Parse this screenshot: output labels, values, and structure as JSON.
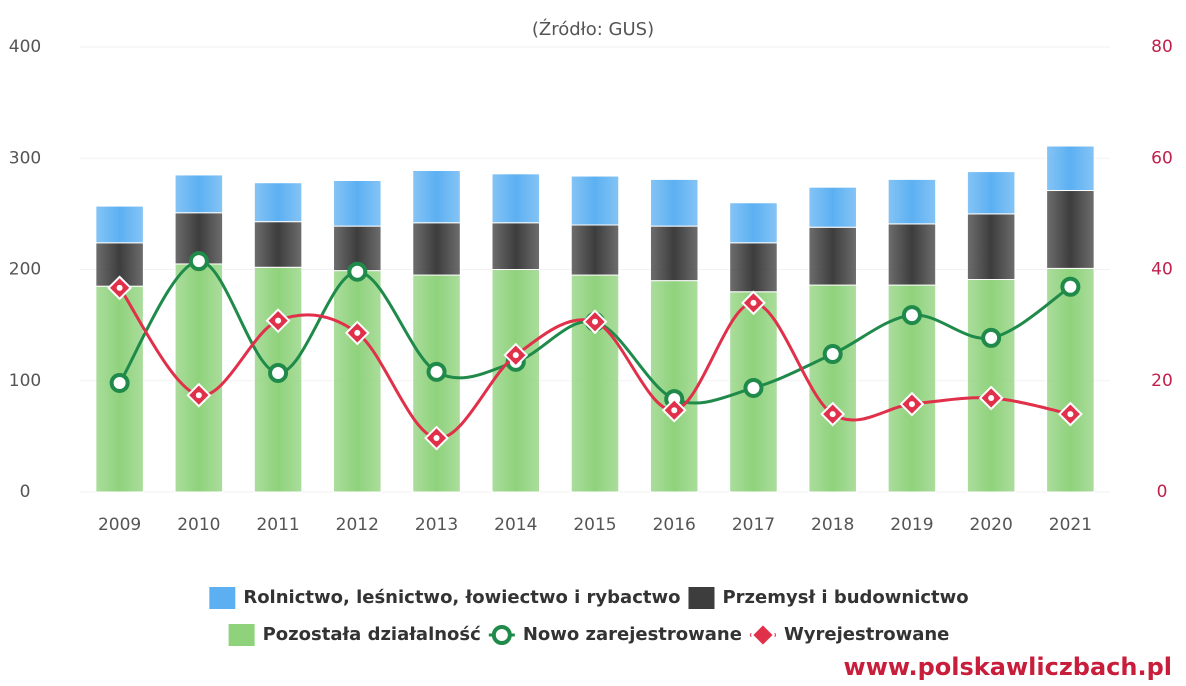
{
  "chart_data": {
    "type": "bar-line",
    "subtitle": "(Źródło: GUS)",
    "source": "www.polskawliczbach.pl",
    "categories": [
      "2009",
      "2010",
      "2011",
      "2012",
      "2013",
      "2014",
      "2015",
      "2016",
      "2017",
      "2018",
      "2019",
      "2020",
      "2021"
    ],
    "series": [
      {
        "name": "Rolnictwo, leśnictwo, łowiectwo i rybactwo",
        "type": "bar",
        "color": "#5cb0f2",
        "values": [
          33,
          34,
          35,
          41,
          47,
          44,
          44,
          42,
          36,
          36,
          40,
          38,
          40
        ]
      },
      {
        "name": "Przemysł i budownictwo",
        "type": "bar",
        "color": "#3d3d3d",
        "values": [
          39,
          46,
          41,
          40,
          47,
          42,
          45,
          49,
          44,
          52,
          55,
          59,
          70
        ]
      },
      {
        "name": "Pozostała działalność",
        "type": "bar",
        "color": "#8fd27c",
        "values": [
          185,
          205,
          202,
          199,
          195,
          200,
          195,
          190,
          180,
          186,
          186,
          191,
          201
        ]
      },
      {
        "name": "Nowo zarejestrowane",
        "type": "line",
        "axis": "y2",
        "color": "#1f8a4a",
        "marker": "circle",
        "values": [
          19.6,
          41.5,
          21.4,
          39.6,
          21.6,
          23.4,
          30.6,
          16.7,
          18.7,
          24.8,
          31.8,
          27.7,
          36.9
        ]
      },
      {
        "name": "Wyrejestrowane",
        "type": "line",
        "axis": "y2",
        "color": "#e0304a",
        "marker": "diamond",
        "values": [
          36.7,
          17.4,
          30.8,
          28.6,
          9.7,
          24.6,
          30.6,
          14.7,
          34,
          14,
          15.8,
          16.9,
          14
        ]
      }
    ],
    "ylim": [
      0,
      400
    ],
    "yticks": [
      0,
      100,
      200,
      300,
      400
    ],
    "y2lim": [
      0,
      80
    ],
    "y2ticks": [
      0,
      20,
      40,
      60,
      80
    ]
  }
}
